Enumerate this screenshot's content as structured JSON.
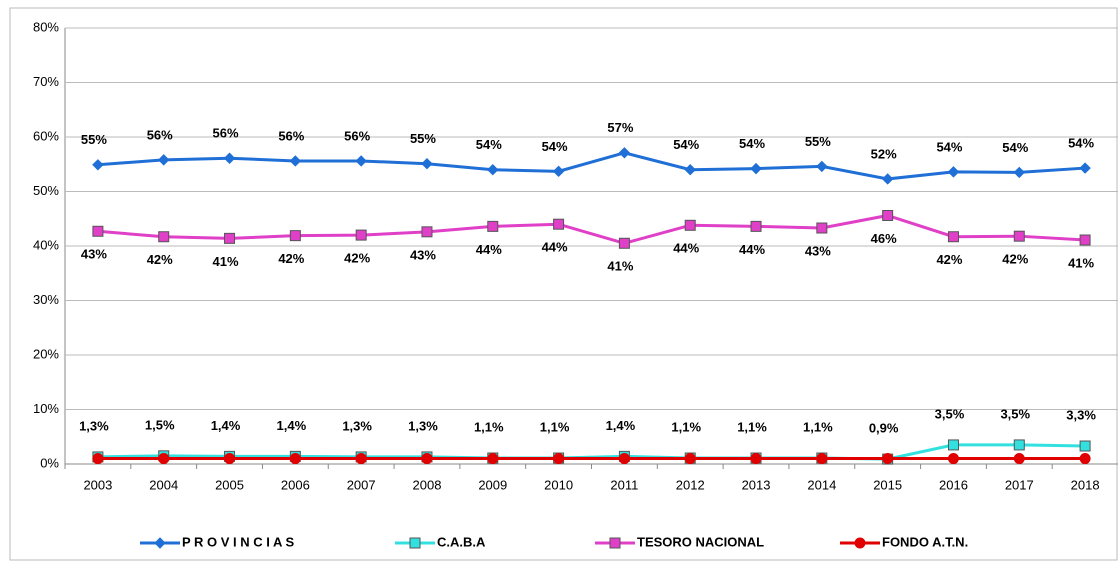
{
  "chart_data": {
    "type": "line",
    "categories": [
      "2003",
      "2004",
      "2005",
      "2006",
      "2007",
      "2008",
      "2009",
      "2010",
      "2011",
      "2012",
      "2013",
      "2014",
      "2015",
      "2016",
      "2017",
      "2018"
    ],
    "series": [
      {
        "name": "P R O V I N C I A S",
        "color": "#1f6fd6",
        "marker": "diamond",
        "values": [
          54.9,
          55.8,
          56.1,
          55.6,
          55.6,
          55.1,
          54.0,
          53.7,
          57.1,
          54.0,
          54.2,
          54.6,
          52.3,
          53.6,
          53.5,
          54.3
        ],
        "value_labels": [
          "55%",
          "56%",
          "56%",
          "56%",
          "56%",
          "55%",
          "54%",
          "54%",
          "57%",
          "54%",
          "54%",
          "55%",
          "52%",
          "54%",
          "54%",
          "54%"
        ]
      },
      {
        "name": "C.A.B.A",
        "color": "#33e0e0",
        "marker": "square",
        "values": [
          1.3,
          1.5,
          1.4,
          1.4,
          1.3,
          1.3,
          1.1,
          1.1,
          1.4,
          1.1,
          1.1,
          1.1,
          0.9,
          3.5,
          3.5,
          3.3
        ],
        "value_labels": [
          "1,3%",
          "1,5%",
          "1,4%",
          "1,4%",
          "1,3%",
          "1,3%",
          "1,1%",
          "1,1%",
          "1,4%",
          "1,1%",
          "1,1%",
          "1,1%",
          "0,9%",
          "3,5%",
          "3,5%",
          "3,3%"
        ]
      },
      {
        "name": "TESORO NACIONAL",
        "color": "#e040c8",
        "marker": "square",
        "values": [
          42.7,
          41.7,
          41.4,
          41.9,
          42.0,
          42.6,
          43.6,
          44.0,
          40.5,
          43.8,
          43.6,
          43.3,
          45.6,
          41.7,
          41.8,
          41.1
        ],
        "value_labels": [
          "43%",
          "42%",
          "41%",
          "42%",
          "42%",
          "43%",
          "44%",
          "44%",
          "41%",
          "44%",
          "44%",
          "43%",
          "46%",
          "42%",
          "42%",
          "41%"
        ]
      },
      {
        "name": "FONDO A.T.N.",
        "color": "#e00000",
        "marker": "circle",
        "values": [
          1.0,
          1.0,
          1.0,
          1.0,
          1.0,
          1.0,
          1.0,
          1.0,
          1.0,
          1.0,
          1.0,
          1.0,
          1.0,
          1.0,
          1.0,
          1.0
        ]
      }
    ],
    "ylim": [
      0,
      80
    ],
    "yticks": [
      {
        "value": 0,
        "label": "0%"
      },
      {
        "value": 10,
        "label": "10%"
      },
      {
        "value": 20,
        "label": "20%"
      },
      {
        "value": 30,
        "label": "30%"
      },
      {
        "value": 40,
        "label": "40%"
      },
      {
        "value": 50,
        "label": "50%"
      },
      {
        "value": 60,
        "label": "60%"
      },
      {
        "value": 70,
        "label": "70%"
      },
      {
        "value": 80,
        "label": "80%"
      }
    ],
    "grid": true,
    "legend": "bottom"
  }
}
